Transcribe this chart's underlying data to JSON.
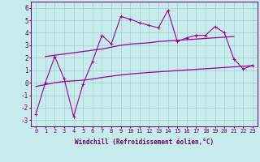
{
  "x_values": [
    0,
    1,
    2,
    3,
    4,
    5,
    6,
    7,
    8,
    9,
    10,
    11,
    12,
    13,
    14,
    15,
    16,
    17,
    18,
    19,
    20,
    21,
    22,
    23
  ],
  "line1_y": [
    -2.5,
    0.0,
    2.1,
    0.3,
    -2.7,
    -0.1,
    1.7,
    3.8,
    3.1,
    5.3,
    5.1,
    4.8,
    4.6,
    4.4,
    5.8,
    3.3,
    3.6,
    3.8,
    3.8,
    4.5,
    4.0,
    1.9,
    1.1,
    1.4
  ],
  "trend1_x": [
    1,
    2,
    7,
    8,
    9,
    10,
    11,
    12,
    13,
    14,
    15,
    16,
    17,
    18,
    19,
    20,
    21
  ],
  "trend1_y": [
    2.1,
    2.2,
    2.7,
    2.85,
    3.0,
    3.1,
    3.15,
    3.2,
    3.3,
    3.35,
    3.4,
    3.45,
    3.5,
    3.55,
    3.6,
    3.65,
    3.7
  ],
  "trend2_x": [
    0,
    1,
    2,
    3,
    4,
    5,
    6,
    7,
    8,
    9,
    10,
    11,
    12,
    13,
    14,
    15,
    16,
    17,
    18,
    19,
    20,
    21,
    22,
    23
  ],
  "trend2_y": [
    -0.3,
    -0.15,
    0.0,
    0.1,
    0.15,
    0.2,
    0.3,
    0.42,
    0.52,
    0.62,
    0.7,
    0.76,
    0.82,
    0.87,
    0.92,
    0.97,
    1.02,
    1.07,
    1.12,
    1.17,
    1.22,
    1.27,
    1.32,
    1.37
  ],
  "line_color": "#990099",
  "bg_color": "#c8ecec",
  "grid_color": "#9ecece",
  "ylim": [
    -3.5,
    6.5
  ],
  "xlim": [
    -0.5,
    23.5
  ],
  "yticks": [
    -3,
    -2,
    -1,
    0,
    1,
    2,
    3,
    4,
    5,
    6
  ],
  "xticks": [
    0,
    1,
    2,
    3,
    4,
    5,
    6,
    7,
    8,
    9,
    10,
    11,
    12,
    13,
    14,
    15,
    16,
    17,
    18,
    19,
    20,
    21,
    22,
    23
  ],
  "xlabel": "Windchill (Refroidissement éolien,°C)",
  "font_color": "#660066",
  "tick_fontsize": 5.0,
  "xlabel_fontsize": 5.5
}
